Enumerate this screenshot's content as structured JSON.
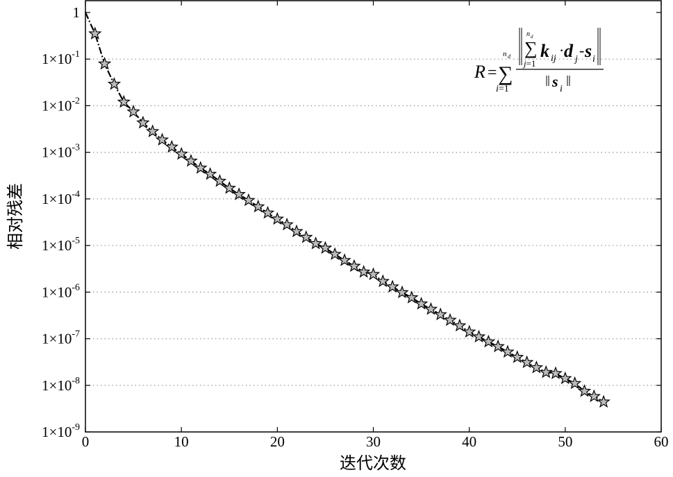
{
  "chart_data": {
    "type": "line",
    "title": "",
    "xlabel": "迭代次数",
    "ylabel": "相对残差",
    "y_scale": "log",
    "xlim": [
      0,
      60
    ],
    "ylim": [
      1e-09,
      1
    ],
    "x_ticks": [
      0,
      10,
      20,
      30,
      40,
      50,
      60
    ],
    "y_ticks": [
      {
        "value": 1,
        "label": "1",
        "mant": "",
        "exp": ""
      },
      {
        "value": 0.1,
        "label": "1×10⁻¹",
        "mant": "1×10",
        "exp": "-1"
      },
      {
        "value": 0.01,
        "label": "1×10⁻²",
        "mant": "1×10",
        "exp": "-2"
      },
      {
        "value": 0.001,
        "label": "1×10⁻³",
        "mant": "1×10",
        "exp": "-3"
      },
      {
        "value": 0.0001,
        "label": "1×10⁻⁴",
        "mant": "1×10",
        "exp": "-4"
      },
      {
        "value": 1e-05,
        "label": "1×10⁻⁵",
        "mant": "1×10",
        "exp": "-5"
      },
      {
        "value": 1e-06,
        "label": "1×10⁻⁶",
        "mant": "1×10",
        "exp": "-6"
      },
      {
        "value": 1e-07,
        "label": "1×10⁻⁷",
        "mant": "1×10",
        "exp": "-7"
      },
      {
        "value": 1e-08,
        "label": "1×10⁻⁸",
        "mant": "1×10",
        "exp": "-8"
      },
      {
        "value": 1e-09,
        "label": "1×10⁻⁹",
        "mant": "1×10",
        "exp": "-9"
      }
    ],
    "grid": "horizontal-dotted",
    "line_style": "dash-dot",
    "line_color": "#000000",
    "marker": "star",
    "marker_fill": "#bbbbbb",
    "marker_edge": "#000000",
    "annotation": "R=∑(i=1..n_d) ‖∑(j=1..n_d) k_ij·d_j − s_i‖ / ‖s_i‖",
    "series": [
      {
        "x": [
          0,
          1,
          2,
          3,
          4,
          5,
          6,
          7,
          8,
          9,
          10,
          11,
          12,
          13,
          14,
          15,
          16,
          17,
          18,
          19,
          20,
          21,
          22,
          23,
          24,
          25,
          26,
          27,
          28,
          29,
          30,
          31,
          32,
          33,
          34,
          35,
          36,
          37,
          38,
          39,
          40,
          41,
          42,
          43,
          44,
          45,
          46,
          47,
          48,
          49,
          50,
          51,
          52,
          53,
          54
        ],
        "y": [
          1,
          0.35,
          0.079,
          0.029,
          0.012,
          0.0074,
          0.0043,
          0.0028,
          0.00185,
          0.0013,
          0.00092,
          0.00065,
          0.00046,
          0.00034,
          0.00024,
          0.00017,
          0.000125,
          9.3e-05,
          6.8e-05,
          5e-05,
          3.7e-05,
          2.8e-05,
          2e-05,
          1.5e-05,
          1.1e-05,
          8.8e-06,
          6.5e-06,
          4.8e-06,
          3.6e-06,
          2.7e-06,
          2.4e-06,
          1.7e-06,
          1.3e-06,
          9.8e-07,
          7.6e-07,
          5.6e-07,
          4.3e-07,
          3.3e-07,
          2.5e-07,
          1.9e-07,
          1.4e-07,
          1.1e-07,
          8.6e-08,
          6.8e-08,
          5.2e-08,
          4e-08,
          3.1e-08,
          2.4e-08,
          1.9e-08,
          1.8e-08,
          1.4e-08,
          1.1e-08,
          7.5e-09,
          5.8e-09,
          4.4e-09
        ]
      }
    ]
  }
}
